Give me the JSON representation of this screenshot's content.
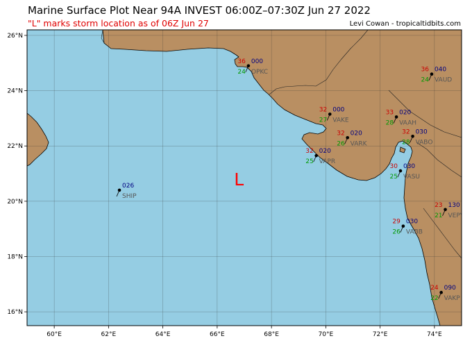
{
  "header": {
    "title": "Marine Surface Plot Near 94A INVEST 06:00Z–07:30Z Jun 27 2022",
    "subtitle": "\"L\" marks storm location as of 06Z Jun 27",
    "credit": "Levi Cowan - tropicaltidbits.com"
  },
  "colors": {
    "ocean": "#95cde3",
    "land": "#b98f62",
    "temperature": "#cc0000",
    "dewpoint": "#009900",
    "pressure": "#000080",
    "station_id": "#555555",
    "storm_marker": "#ff0000"
  },
  "map": {
    "lon_range": [
      59,
      75
    ],
    "lat_range": [
      15.5,
      26.2
    ],
    "lon_ticks": [
      "60°E",
      "62°E",
      "64°E",
      "66°E",
      "68°E",
      "70°E",
      "72°E",
      "74°E"
    ],
    "lat_ticks": [
      "16°N",
      "18°N",
      "20°N",
      "22°N",
      "24°N",
      "26°N"
    ],
    "storm_marker": {
      "label": "L",
      "lon": 66.8,
      "lat": 20.8
    }
  },
  "stations": [
    {
      "id": "OPKC",
      "lon": 67.15,
      "lat": 24.9,
      "temp": "36",
      "dew": "24",
      "pres": "000"
    },
    {
      "id": "VAUD",
      "lon": 73.9,
      "lat": 24.6,
      "temp": "36",
      "dew": "24",
      "pres": "040"
    },
    {
      "id": "VAKE",
      "lon": 70.15,
      "lat": 23.15,
      "temp": "32",
      "dew": "27",
      "pres": "000"
    },
    {
      "id": "VAAH",
      "lon": 72.6,
      "lat": 23.05,
      "temp": "33",
      "dew": "28",
      "pres": "020"
    },
    {
      "id": "VARK",
      "lon": 70.8,
      "lat": 22.3,
      "temp": "32",
      "dew": "26",
      "pres": "020"
    },
    {
      "id": "VABO",
      "lon": 73.2,
      "lat": 22.35,
      "temp": "32",
      "dew": "28",
      "pres": "030"
    },
    {
      "id": "VAPR",
      "lon": 69.65,
      "lat": 21.65,
      "temp": "32",
      "dew": "25",
      "pres": "020"
    },
    {
      "id": "VASU",
      "lon": 72.75,
      "lat": 21.1,
      "temp": "30",
      "dew": "25",
      "pres": "030"
    },
    {
      "id": "SHIP",
      "lon": 62.4,
      "lat": 20.4,
      "temp": "",
      "dew": "",
      "pres": "026"
    },
    {
      "id": "VEPY",
      "lon": 74.4,
      "lat": 19.7,
      "temp": "23",
      "dew": "21",
      "pres": "130"
    },
    {
      "id": "VABB",
      "lon": 72.85,
      "lat": 19.1,
      "temp": "29",
      "dew": "26",
      "pres": "030"
    },
    {
      "id": "VAKP",
      "lon": 74.25,
      "lat": 16.7,
      "temp": "24",
      "dew": "22",
      "pres": "090"
    }
  ]
}
